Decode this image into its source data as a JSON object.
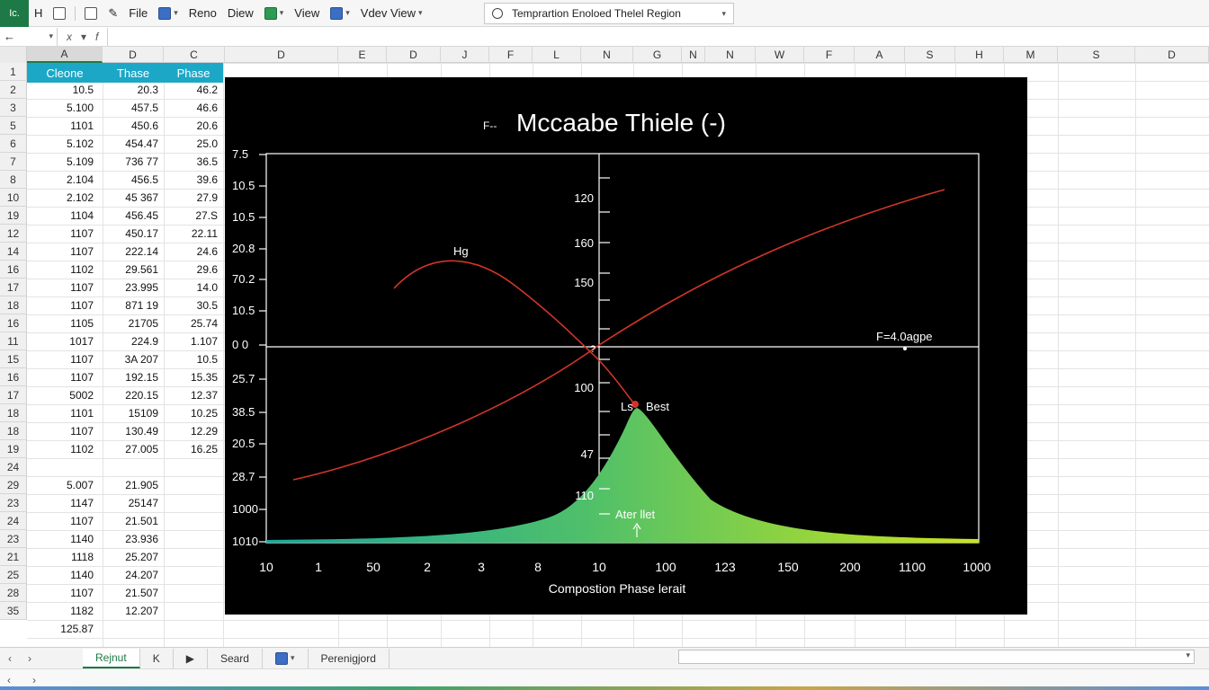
{
  "ribbon": {
    "app_icon": "Ic.",
    "item_h": "H",
    "menu_file": "File",
    "menu_reno": "Reno",
    "menu_diew": "Diew",
    "menu_view": "View",
    "menu_vdev": "Vdev View",
    "tell_me": "Temprartion Enoloed Thelel Region"
  },
  "formula_bar": {
    "name_box": "",
    "fx_x": "x",
    "fx_f": "f"
  },
  "columns": [
    "A",
    "D",
    "C",
    "D",
    "E",
    "D",
    "J",
    "F",
    "L",
    "N",
    "G",
    "N",
    "N",
    "W",
    "F",
    "A",
    "S",
    "H",
    "M",
    "S",
    "D"
  ],
  "rows": [
    "1",
    "2",
    "3",
    "5",
    "6",
    "7",
    "8",
    "10",
    "19",
    "12",
    "14",
    "16",
    "17",
    "18",
    "16",
    "11",
    "15",
    "16",
    "17",
    "18",
    "18",
    "19",
    "24",
    "29",
    "23",
    "24",
    "23",
    "21",
    "25",
    "28",
    "35"
  ],
  "sheet": {
    "headers": [
      "Cleone",
      "Thase",
      "Phase"
    ],
    "col_a": [
      "10.5",
      "5.100",
      "1101",
      "5.102",
      "5.109",
      "2.104",
      "2.102",
      "1104",
      "1107",
      "1107",
      "1102",
      "1107",
      "1107",
      "1105",
      "1017",
      "1107",
      "1107",
      "5002",
      "1101",
      "1107",
      "1102",
      "",
      "5.007",
      "1147",
      "1107",
      "1140",
      "1118",
      "1140",
      "1107",
      "1182",
      "125.87"
    ],
    "col_b": [
      "20.3",
      "457.5",
      "450.6",
      "454.47",
      "736 77",
      "456.5",
      "45 367",
      "456.45",
      "450.17",
      "222.14",
      "29.561",
      "23.995",
      "871 19",
      "21705",
      "224.9",
      "3A 207",
      "192.15",
      "220.15",
      "15109",
      "130.49",
      "27.005",
      "",
      "21.905",
      "25147",
      "21.501",
      "23.936",
      "25.207",
      "24.207",
      "21.507",
      "12.207",
      ""
    ],
    "col_c": [
      "46.2",
      "46.6",
      "20.6",
      "25.0",
      "36.5",
      "39.6",
      "27.9",
      "27.S",
      "22.11",
      "24.6",
      "29.6",
      "14.0",
      "30.5",
      "25.74",
      "1.107",
      "10.5",
      "15.35",
      "12.37",
      "10.25",
      "12.29",
      "16.25",
      "",
      "",
      "",
      "",
      "",
      "",
      "",
      "",
      "",
      ""
    ]
  },
  "chart": {
    "title_prefix": "F--",
    "title": "Mccaabe Thiele (-)",
    "xlabel": "Compostion Phase lerait",
    "annotation_hg": "Hg",
    "annotation_best": "Best",
    "annotation_ls": "Ls",
    "annotation_q": "?",
    "annotation_capp": "F=4.0agpe",
    "annotation_after": "Ater llet",
    "left_ticks": [
      "7.5",
      "10.5",
      "10.5",
      "20.8",
      "70.2",
      "10.5",
      "0 0",
      "25.7",
      "38.5",
      "20.5",
      "28.7",
      "1000",
      "1010"
    ],
    "mid_ticks": [
      "120",
      "160",
      "150",
      "100",
      "47",
      "110"
    ],
    "x_ticks": [
      "10",
      "1",
      "50",
      "2",
      "3",
      "8",
      "10",
      "100",
      "123",
      "150",
      "200",
      "1100",
      "1000"
    ],
    "colors": {
      "background": "#000000",
      "curve": "#d2352a",
      "fill_start": "#1aa89a",
      "fill_end": "#c9e51a"
    }
  },
  "chart_data": {
    "type": "line",
    "title": "Mccaabe Thiele (-)",
    "xlabel": "Compostion Phase lerait",
    "ylabel": "",
    "x": [
      "10",
      "1",
      "50",
      "2",
      "3",
      "8",
      "10",
      "100",
      "123",
      "150",
      "200",
      "1100",
      "1000"
    ],
    "series": [
      {
        "values": [
          null,
          28.7,
          20.8,
          38.5,
          25.7,
          0,
          10.5,
          20.8,
          10.5,
          10.5,
          10.5,
          7.5,
          null
        ]
      },
      {
        "values": [
          null,
          null,
          70.2,
          20.8,
          10.5,
          0,
          38.5,
          null,
          null,
          null,
          null,
          null,
          null
        ]
      },
      {
        "values": [
          1010,
          1010,
          1010,
          1010,
          1000,
          110,
          47,
          100,
          110,
          1000,
          1010,
          1010,
          1010
        ]
      }
    ],
    "grid": false,
    "legend": "none"
  },
  "tabs": {
    "active": "Rejnut",
    "tab2": "K",
    "tab3": "Seard",
    "tab5": "Perenigjord"
  }
}
